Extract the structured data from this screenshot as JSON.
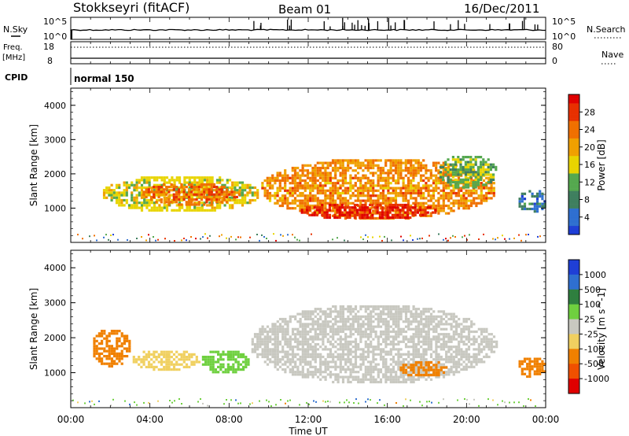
{
  "header": {
    "station": "Stokkseyri (fitACF)",
    "beam": "Beam 01",
    "date": "16/Dec/2011"
  },
  "strip_labels": {
    "nsky": "N.Sky",
    "nsearch": "N.Search",
    "freq": "Freq.",
    "freq_unit": "[MHz]",
    "nave": "Nave",
    "cpid": "CPID",
    "cpid_value": "normal 150"
  },
  "noise_ticks": {
    "left_top": "10^5",
    "left_bottom": "10^0",
    "right_top": "10^5",
    "right_bottom": "10^0"
  },
  "freq_ticks": {
    "left_top": "18",
    "left_bottom": "8",
    "right_top": "80",
    "right_bottom": "0"
  },
  "colors": {
    "power_scale": [
      "#1f3fd6",
      "#2f6fd0",
      "#3f7f5f",
      "#55a84f",
      "#e8d400",
      "#f0a000",
      "#f07000",
      "#e83000",
      "#e00000"
    ],
    "velocity_scale": [
      "#1f3fd6",
      "#2f6fd0",
      "#2f7f3f",
      "#6fd03f",
      "#c8c8c0",
      "#f0d060",
      "#f08000",
      "#f05000",
      "#e00000"
    ],
    "ground_scatter": "#c8c8c0"
  },
  "chart_data": [
    {
      "type": "heatmap",
      "name": "power",
      "xlabel": "",
      "ylabel": "Slant Range [km]",
      "x_ticks": [
        "00:00",
        "04:00",
        "08:00",
        "12:00",
        "16:00",
        "20:00",
        "00:00"
      ],
      "xlim": [
        0,
        24
      ],
      "ylim": [
        0,
        4500
      ],
      "y_ticks": [
        "1000",
        "2000",
        "3000",
        "4000"
      ],
      "y_tick_values": [
        1000,
        2000,
        3000,
        4000
      ],
      "colorbar": {
        "label": "Power [dB]",
        "range": [
          0,
          32
        ],
        "ticks": [
          "4",
          "8",
          "12",
          "16",
          "20",
          "24",
          "28"
        ],
        "tick_values": [
          4,
          8,
          12,
          16,
          20,
          24,
          28
        ]
      },
      "regions": [
        {
          "t": [
            1.5,
            9.5
          ],
          "range": [
            900,
            2000
          ],
          "level": 16
        },
        {
          "t": [
            3.5,
            8.5
          ],
          "range": [
            1100,
            1800
          ],
          "level": 24
        },
        {
          "t": [
            9.5,
            21.5
          ],
          "range": [
            700,
            2500
          ],
          "level": 22
        },
        {
          "t": [
            11.5,
            18.5
          ],
          "range": [
            700,
            1200
          ],
          "level": 30
        },
        {
          "t": [
            18.5,
            21.5
          ],
          "range": [
            1600,
            2600
          ],
          "level": 12
        },
        {
          "t": [
            22.5,
            24.0
          ],
          "range": [
            900,
            1600
          ],
          "level": 6
        }
      ]
    },
    {
      "type": "heatmap",
      "name": "velocity",
      "xlabel": "Time UT",
      "ylabel": "Slant Range [km]",
      "x_ticks": [
        "00:00",
        "04:00",
        "08:00",
        "12:00",
        "16:00",
        "20:00",
        "00:00"
      ],
      "xlim": [
        0,
        24
      ],
      "ylim": [
        0,
        4500
      ],
      "y_ticks": [
        "1000",
        "2000",
        "3000",
        "4000"
      ],
      "y_tick_values": [
        1000,
        2000,
        3000,
        4000
      ],
      "colorbar": {
        "label": "Velocity [m s^-1]",
        "ticks": [
          "1000",
          "500",
          "100",
          "25",
          "-25",
          "-100",
          "-500",
          "-1000"
        ],
        "tick_values": [
          1000,
          500,
          100,
          25,
          -25,
          -100,
          -500,
          -1000
        ]
      },
      "regions": [
        {
          "t": [
            1.0,
            3.0
          ],
          "range": [
            1200,
            2300
          ],
          "velocity": -300
        },
        {
          "t": [
            3.0,
            6.5
          ],
          "range": [
            1100,
            1700
          ],
          "velocity": -80
        },
        {
          "t": [
            6.5,
            9.0
          ],
          "range": [
            1000,
            1700
          ],
          "velocity": 60
        },
        {
          "t": [
            9.0,
            21.5
          ],
          "range": [
            700,
            3000
          ],
          "velocity": 0
        },
        {
          "t": [
            16.5,
            19.0
          ],
          "range": [
            900,
            1400
          ],
          "velocity": -150
        },
        {
          "t": [
            22.5,
            24.0
          ],
          "range": [
            900,
            1500
          ],
          "velocity": -400
        }
      ]
    }
  ]
}
